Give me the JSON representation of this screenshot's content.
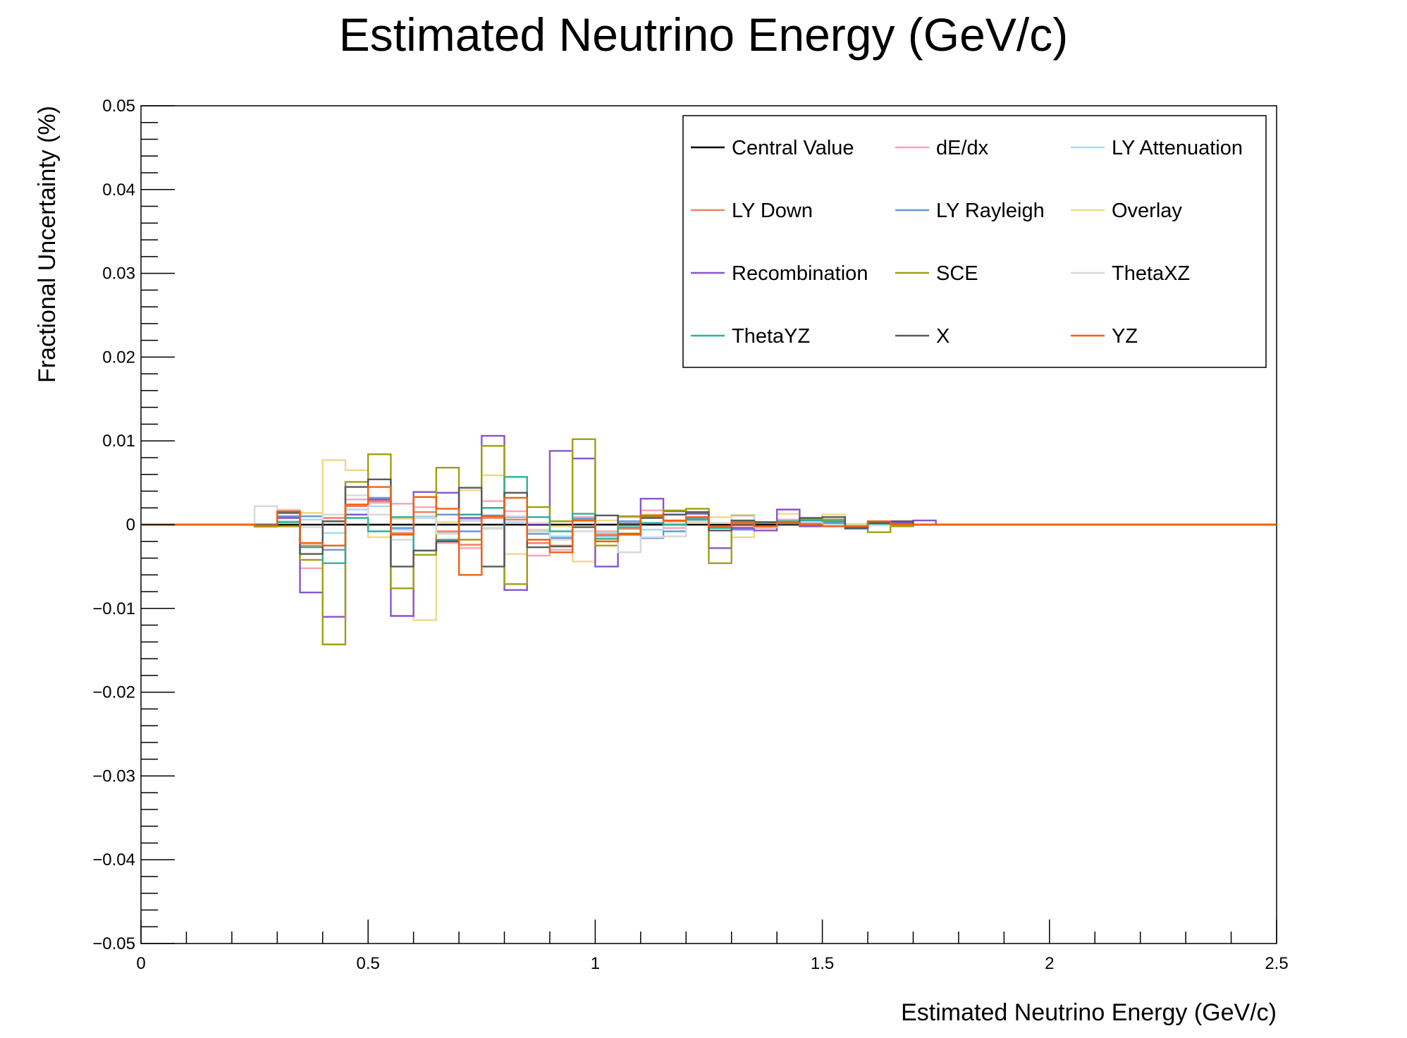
{
  "chart_data": {
    "type": "line",
    "title": "Estimated Neutrino Energy (GeV/c)",
    "xlabel": "Estimated Neutrino Energy (GeV/c)",
    "ylabel": "Fractional Uncertainty (%)",
    "xlim": [
      0,
      2.5
    ],
    "ylim": [
      -0.05,
      0.05
    ],
    "xticks": [
      {
        "value": 0,
        "label": "0"
      },
      {
        "value": 0.5,
        "label": "0.5"
      },
      {
        "value": 1,
        "label": "1"
      },
      {
        "value": 1.5,
        "label": "1.5"
      },
      {
        "value": 2,
        "label": "2"
      },
      {
        "value": 2.5,
        "label": "2.5"
      }
    ],
    "yticks": [
      {
        "value": 0.05,
        "label": "0.05"
      },
      {
        "value": 0.04,
        "label": "0.04"
      },
      {
        "value": 0.03,
        "label": "0.03"
      },
      {
        "value": 0.02,
        "label": "0.02"
      },
      {
        "value": 0.01,
        "label": "0.01"
      },
      {
        "value": 0,
        "label": "0"
      },
      {
        "value": -0.01,
        "label": "−0.01"
      },
      {
        "value": -0.02,
        "label": "−0.02"
      },
      {
        "value": -0.03,
        "label": "−0.03"
      },
      {
        "value": -0.04,
        "label": "−0.04"
      },
      {
        "value": -0.05,
        "label": "−0.05"
      }
    ],
    "grid": false,
    "legend_position": "top-right",
    "bin_edges": [
      0.25,
      0.3,
      0.35,
      0.4,
      0.45,
      0.5,
      0.55,
      0.6,
      0.65,
      0.7,
      0.75,
      0.8,
      0.85,
      0.9,
      0.95,
      1.0,
      1.05,
      1.1,
      1.15,
      1.2,
      1.25,
      1.3,
      1.35,
      1.4,
      1.45,
      1.5,
      1.55,
      1.6,
      1.65,
      1.7,
      1.75
    ],
    "series": [
      {
        "name": "Central Value",
        "color": "#000000",
        "values": [
          0,
          0,
          0,
          0,
          0,
          0,
          0,
          0,
          0,
          0,
          0,
          0,
          0,
          0,
          0,
          0,
          0,
          0,
          0,
          0,
          0,
          0,
          0,
          0,
          0,
          0,
          0,
          0,
          0,
          0
        ]
      },
      {
        "name": "dE/dx",
        "color": "#f6a5b6",
        "values": [
          0,
          0.0008,
          -0.0052,
          0.0012,
          0.003,
          0.0026,
          0.0025,
          0.0021,
          -0.0022,
          -0.0028,
          0.0028,
          0.0016,
          -0.0037,
          -0.003,
          0.0009,
          -0.0008,
          0.0009,
          0.0017,
          -0.0004,
          0.0009,
          0.0002,
          -0.0003,
          -0.0004,
          0.0006,
          0.0001,
          0.0001,
          -0.0002,
          0.0001,
          0,
          0
        ]
      },
      {
        "name": "LY Attenuation",
        "color": "#a6dcef",
        "values": [
          0,
          0.0004,
          0.0006,
          -0.001,
          0.0018,
          0.0022,
          -0.0006,
          0.001,
          -0.001,
          0.0006,
          -0.0004,
          0.0003,
          -0.0008,
          -0.0014,
          0.0004,
          -0.001,
          0.0003,
          -0.0006,
          0.0005,
          0.0004,
          -0.0002,
          0.0003,
          -0.0002,
          0.0002,
          0.0002,
          0.0001,
          -0.0001,
          0.0001,
          0,
          0
        ]
      },
      {
        "name": "LY Down",
        "color": "#f08060",
        "values": [
          0,
          0.001,
          -0.0025,
          0.0008,
          0.0022,
          0.0028,
          -0.001,
          0.0015,
          -0.0008,
          -0.0024,
          0.0008,
          0.0006,
          -0.0022,
          -0.0025,
          0.0005,
          -0.0012,
          -0.0005,
          0.0012,
          0.0004,
          0.0007,
          -0.0002,
          0.0001,
          -0.0003,
          0.0003,
          0,
          -0.0001,
          -0.0003,
          0.0001,
          0,
          0
        ]
      },
      {
        "name": "LY Rayleigh",
        "color": "#6699d8",
        "values": [
          0,
          0.001,
          0.001,
          -0.003,
          0.0012,
          0.0032,
          -0.0004,
          0.0008,
          0.0012,
          -0.0008,
          0.0011,
          0.0009,
          -0.0011,
          -0.0016,
          0.0007,
          -0.0014,
          0.0004,
          -0.0016,
          -0.0008,
          0.0008,
          -0.0003,
          -0.0006,
          0.0002,
          0.0003,
          0.0002,
          0.0002,
          -0.0005,
          0.0001,
          0,
          0
        ]
      },
      {
        "name": "Overlay",
        "color": "#f0d888",
        "values": [
          -0.0003,
          0.0002,
          0.0014,
          0.0077,
          0.0065,
          -0.0015,
          0.0007,
          -0.0114,
          0.0003,
          0.0041,
          0.0059,
          -0.0035,
          -0.0006,
          -0.0002,
          -0.0044,
          0.0005,
          -0.001,
          0.0012,
          0.0012,
          0.0003,
          0.0009,
          -0.0015,
          -0.0007,
          0.0013,
          0.0007,
          0.0012,
          0.0001,
          0.0001,
          0,
          0
        ]
      },
      {
        "name": "Recombination",
        "color": "#8855cc",
        "values": [
          0,
          0.0008,
          -0.0081,
          -0.011,
          0.0012,
          0.003,
          -0.0109,
          0.0039,
          0.0038,
          0.0008,
          0.0106,
          -0.0078,
          0.0001,
          0.0088,
          0.0079,
          -0.005,
          -0.0011,
          0.0031,
          0.0016,
          0.0013,
          -0.0028,
          -0.0004,
          -0.0007,
          0.0018,
          -0.0002,
          0.0005,
          -0.0003,
          0.0002,
          0.0002,
          0.0005
        ]
      },
      {
        "name": "SCE",
        "color": "#a0a010",
        "values": [
          -0.0002,
          -0.0002,
          -0.0042,
          -0.0143,
          0.0051,
          0.0084,
          -0.0076,
          -0.0036,
          0.0068,
          -0.0018,
          0.0094,
          -0.0071,
          0.0021,
          0.0004,
          0.0102,
          -0.0025,
          0.001,
          0.001,
          0.0017,
          0.0019,
          -0.0046,
          0.0011,
          0.0002,
          0.0004,
          0.0006,
          0.0006,
          -0.0002,
          -0.0009,
          -0.0002,
          0
        ]
      },
      {
        "name": "ThetaXZ",
        "color": "#d8d8d8",
        "values": [
          0.0022,
          0.0018,
          -0.0003,
          0.0012,
          0.0035,
          0.0012,
          -0.0018,
          0.0008,
          -0.0011,
          0.0004,
          -0.0005,
          0.001,
          0.0002,
          -0.0018,
          -0.0008,
          -0.0015,
          -0.0033,
          -0.0015,
          -0.0014,
          0.0004,
          0.0002,
          0.001,
          -0.0003,
          0.0004,
          0.0003,
          -0.0001,
          -0.0004,
          -0.0001,
          0,
          0
        ]
      },
      {
        "name": "ThetaYZ",
        "color": "#30b098",
        "values": [
          0,
          0.0003,
          -0.0027,
          -0.0046,
          0.0008,
          -0.0008,
          0.0009,
          -0.0031,
          -0.0018,
          0.0012,
          0.002,
          0.0057,
          0.0009,
          -0.0008,
          0.0013,
          -0.0017,
          -0.0003,
          0.0002,
          0,
          0.0006,
          -0.0004,
          0.0002,
          0.0003,
          0.0004,
          0.0005,
          0.0004,
          -0.0002,
          0.0001,
          0,
          0
        ]
      },
      {
        "name": "X",
        "color": "#5a5a5a",
        "values": [
          0,
          0.0014,
          -0.0035,
          0.0004,
          0.0045,
          0.0054,
          -0.005,
          -0.0031,
          -0.002,
          0.0044,
          -0.005,
          0.0038,
          -0.0027,
          -0.0026,
          -0.0003,
          0.0011,
          0.0001,
          0.0008,
          0.0012,
          0.0015,
          -0.0007,
          0.0005,
          0.0003,
          0.0001,
          0.0008,
          0.0009,
          -0.0004,
          0.0002,
          0.0004,
          0
        ]
      },
      {
        "name": "YZ",
        "color": "#f06010",
        "values": [
          -0.0001,
          0.0016,
          -0.0022,
          -0.0025,
          0.0024,
          0.0045,
          -0.0012,
          0.0033,
          0.0019,
          -0.006,
          0.001,
          0.0032,
          -0.0018,
          -0.0033,
          0.0005,
          -0.002,
          -0.0012,
          0.0011,
          0.0005,
          0.0009,
          -0.0002,
          0.0003,
          -0.0002,
          0.0002,
          0,
          -0.0002,
          -0.0002,
          0.0004,
          0,
          0
        ]
      }
    ]
  }
}
